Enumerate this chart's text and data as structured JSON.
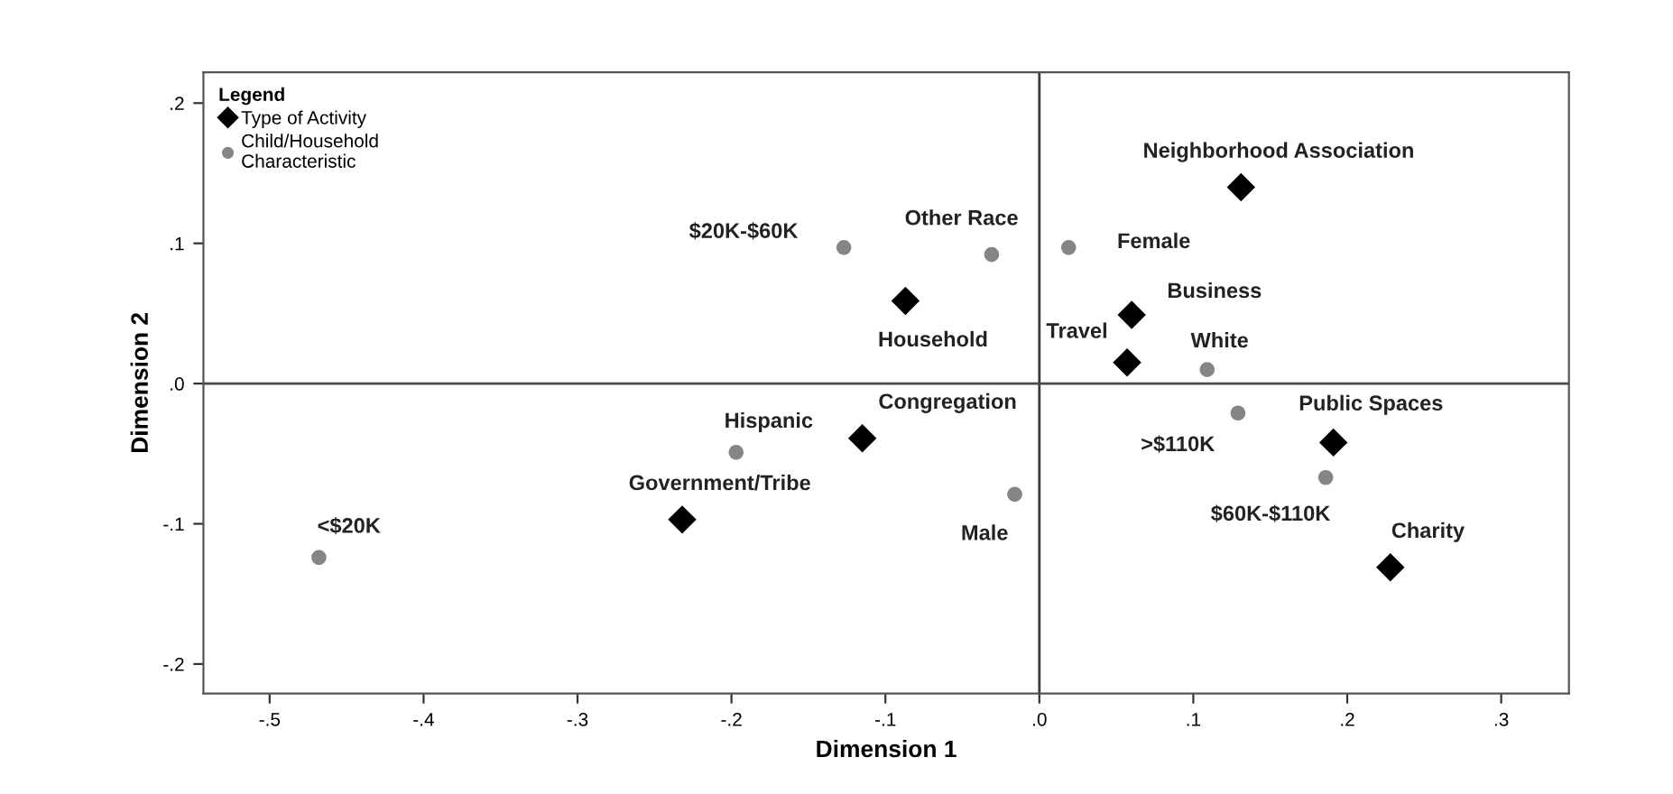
{
  "chart_data": {
    "type": "scatter",
    "xlabel": "Dimension 1",
    "ylabel": "Dimension 2",
    "legend_title": "Legend",
    "legend": "top left",
    "grid": false,
    "xlim": [
      -0.543,
      0.344
    ],
    "ylim": [
      -0.221,
      0.222
    ],
    "xticks": [
      {
        "value": -0.5,
        "label": "-.5"
      },
      {
        "value": -0.4,
        "label": "-.4"
      },
      {
        "value": -0.3,
        "label": "-.3"
      },
      {
        "value": -0.2,
        "label": "-.2"
      },
      {
        "value": -0.1,
        "label": "-.1"
      },
      {
        "value": 0,
        "label": ".0"
      },
      {
        "value": 0.1,
        "label": ".1"
      },
      {
        "value": 0.2,
        "label": ".2"
      },
      {
        "value": 0.3,
        "label": ".3"
      }
    ],
    "yticks": [
      {
        "value": -0.2,
        "label": "-.2"
      },
      {
        "value": -0.1,
        "label": "-.1"
      },
      {
        "value": 0,
        "label": ".0"
      },
      {
        "value": 0.1,
        "label": ".1"
      },
      {
        "value": 0.2,
        "label": ".2"
      }
    ],
    "ref_lines": [
      {
        "axis": "x",
        "value": 0,
        "color": "#3a3a3a"
      },
      {
        "axis": "y",
        "value": 0,
        "color": "#4a4a4a"
      }
    ],
    "series": [
      {
        "name": "Type of Activity",
        "color": "#000000",
        "marker": "diamond",
        "x": [
          0.131,
          -0.087,
          0.06,
          0.057,
          -0.115,
          0.191,
          -0.232,
          0.228
        ],
        "values": [
          0.14,
          0.059,
          0.049,
          0.015,
          -0.039,
          -0.042,
          -0.097,
          -0.131
        ]
      },
      {
        "name": "Child/Household\nCharacteristic",
        "color": "#858585",
        "marker": "circle",
        "x": [
          -0.127,
          -0.031,
          0.019,
          0.109,
          0.129,
          0.186,
          -0.197,
          -0.016,
          -0.468
        ],
        "values": [
          0.097,
          0.092,
          0.097,
          0.01,
          -0.021,
          -0.067,
          -0.049,
          -0.079,
          -0.124
        ]
      }
    ],
    "annotations": [
      {
        "text": "Neighborhood Association",
        "x": 0.131,
        "y": 0.14
      },
      {
        "text": "Household",
        "x": -0.087,
        "y": 0.059
      },
      {
        "text": "Business",
        "x": 0.06,
        "y": 0.049
      },
      {
        "text": "Travel",
        "x": 0.057,
        "y": 0.015
      },
      {
        "text": "Congregation",
        "x": -0.115,
        "y": -0.039
      },
      {
        "text": "Public Spaces",
        "x": 0.191,
        "y": -0.042
      },
      {
        "text": "Government/Tribe",
        "x": -0.232,
        "y": -0.097
      },
      {
        "text": "Charity",
        "x": 0.228,
        "y": -0.131
      },
      {
        "text": "$20K-$60K",
        "x": -0.127,
        "y": 0.097
      },
      {
        "text": "Other Race",
        "x": -0.031,
        "y": 0.092
      },
      {
        "text": "Female",
        "x": 0.019,
        "y": 0.097
      },
      {
        "text": "White",
        "x": 0.109,
        "y": 0.01
      },
      {
        "text": ">$110K",
        "x": 0.129,
        "y": -0.021
      },
      {
        "text": "$60K-$110K",
        "x": 0.186,
        "y": -0.067
      },
      {
        "text": "Hispanic",
        "x": -0.197,
        "y": -0.049
      },
      {
        "text": "Male",
        "x": -0.016,
        "y": -0.079
      },
      {
        "text": "<$20K",
        "x": -0.468,
        "y": -0.124
      }
    ]
  }
}
